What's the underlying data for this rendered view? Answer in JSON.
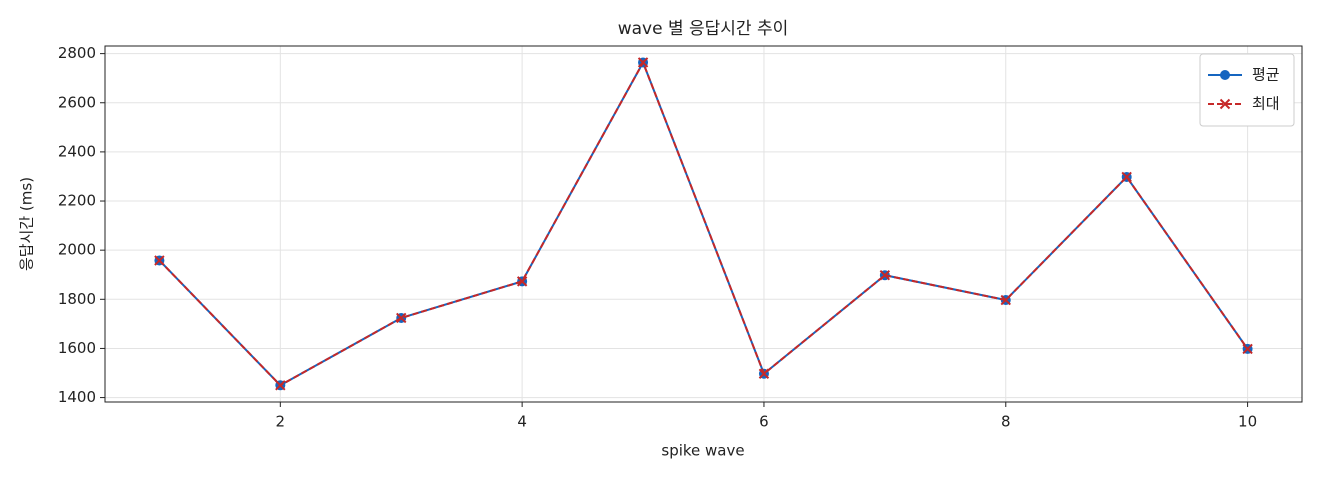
{
  "chart_data": {
    "type": "line",
    "title": "wave 별 응답시간 추이",
    "xlabel": "spike wave",
    "ylabel": "응답시간 (ms)",
    "x": [
      1,
      2,
      3,
      4,
      5,
      6,
      7,
      8,
      9,
      10
    ],
    "series": [
      {
        "name": "평균",
        "color": "#1565c0",
        "marker": "o",
        "linestyle": "solid",
        "values": [
          1958,
          1450,
          1724,
          1873,
          2764,
          1497,
          1898,
          1797,
          2298,
          1598
        ]
      },
      {
        "name": "최대",
        "color": "#c62828",
        "marker": "x",
        "linestyle": "dashed",
        "values": [
          1958,
          1450,
          1724,
          1873,
          2764,
          1497,
          1898,
          1797,
          2298,
          1598
        ]
      }
    ],
    "xlim": [
      0.55,
      10.45
    ],
    "xticks": [
      2,
      4,
      6,
      8,
      10
    ],
    "ylim": [
      1382,
      2831
    ],
    "yticks": [
      1400,
      1600,
      1800,
      2000,
      2200,
      2400,
      2600,
      2800
    ],
    "grid": true,
    "legend": "upper right"
  }
}
